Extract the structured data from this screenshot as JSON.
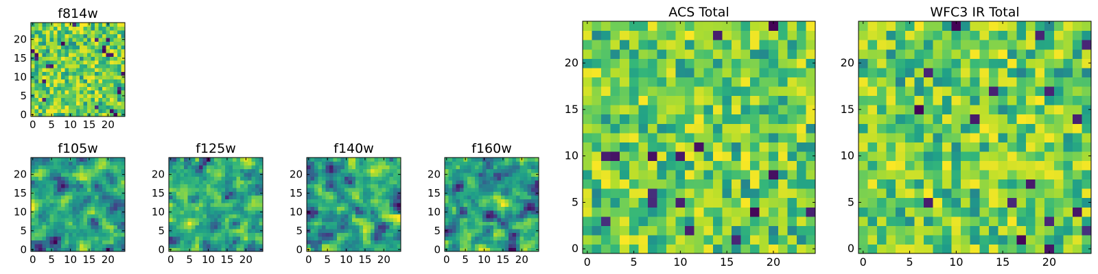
{
  "figure": {
    "colormap": "viridis",
    "grid_size": 25,
    "colors": {
      "low": "#440154",
      "mid": "#21918c",
      "high": "#fde725",
      "frame": "#000000"
    }
  },
  "chart_data": [
    {
      "type": "heatmap",
      "title": "f814w",
      "xlabel": "",
      "ylabel": "",
      "xlim": [
        0,
        25
      ],
      "ylim": [
        0,
        25
      ],
      "xticks": [
        0,
        5,
        10,
        15,
        20
      ],
      "yticks": [
        0,
        5,
        10,
        15,
        20
      ],
      "values_note": "25x25 normalized pixel intensities",
      "seed": 11,
      "smooth": 0
    },
    {
      "type": "heatmap",
      "title": "ACS Total",
      "xlabel": "",
      "ylabel": "",
      "xlim": [
        0,
        25
      ],
      "ylim": [
        0,
        25
      ],
      "xticks": [
        0,
        5,
        10,
        15,
        20
      ],
      "yticks": [
        0,
        5,
        10,
        15,
        20
      ],
      "values_note": "25x25 normalized pixel intensities",
      "seed": 23,
      "smooth": 0
    },
    {
      "type": "heatmap",
      "title": "WFC3 IR Total",
      "xlabel": "",
      "ylabel": "",
      "xlim": [
        0,
        25
      ],
      "ylim": [
        0,
        25
      ],
      "xticks": [
        0,
        5,
        10,
        15,
        20
      ],
      "yticks": [
        0,
        5,
        10,
        15,
        20
      ],
      "values_note": "25x25 normalized pixel intensities",
      "seed": 37,
      "smooth": 0
    },
    {
      "type": "heatmap",
      "title": "f105w",
      "xlabel": "",
      "ylabel": "",
      "xlim": [
        0,
        25
      ],
      "ylim": [
        0,
        25
      ],
      "xticks": [
        0,
        5,
        10,
        15,
        20
      ],
      "yticks": [
        0,
        5,
        10,
        15,
        20
      ],
      "values_note": "25x25 normalized pixel intensities",
      "seed": 41,
      "smooth": 1
    },
    {
      "type": "heatmap",
      "title": "f125w",
      "xlabel": "",
      "ylabel": "",
      "xlim": [
        0,
        25
      ],
      "ylim": [
        0,
        25
      ],
      "xticks": [
        0,
        5,
        10,
        15,
        20
      ],
      "yticks": [
        0,
        5,
        10,
        15,
        20
      ],
      "values_note": "25x25 normalized pixel intensities",
      "seed": 53,
      "smooth": 1
    },
    {
      "type": "heatmap",
      "title": "f140w",
      "xlabel": "",
      "ylabel": "",
      "xlim": [
        0,
        25
      ],
      "ylim": [
        0,
        25
      ],
      "xticks": [
        0,
        5,
        10,
        15,
        20
      ],
      "yticks": [
        0,
        5,
        10,
        15,
        20
      ],
      "values_note": "25x25 normalized pixel intensities",
      "seed": 67,
      "smooth": 1
    },
    {
      "type": "heatmap",
      "title": "f160w",
      "xlabel": "",
      "ylabel": "",
      "xlim": [
        0,
        25
      ],
      "ylim": [
        0,
        25
      ],
      "xticks": [
        0,
        5,
        10,
        15,
        20
      ],
      "yticks": [
        0,
        5,
        10,
        15,
        20
      ],
      "values_note": "25x25 normalized pixel intensities",
      "seed": 79,
      "smooth": 1
    }
  ]
}
